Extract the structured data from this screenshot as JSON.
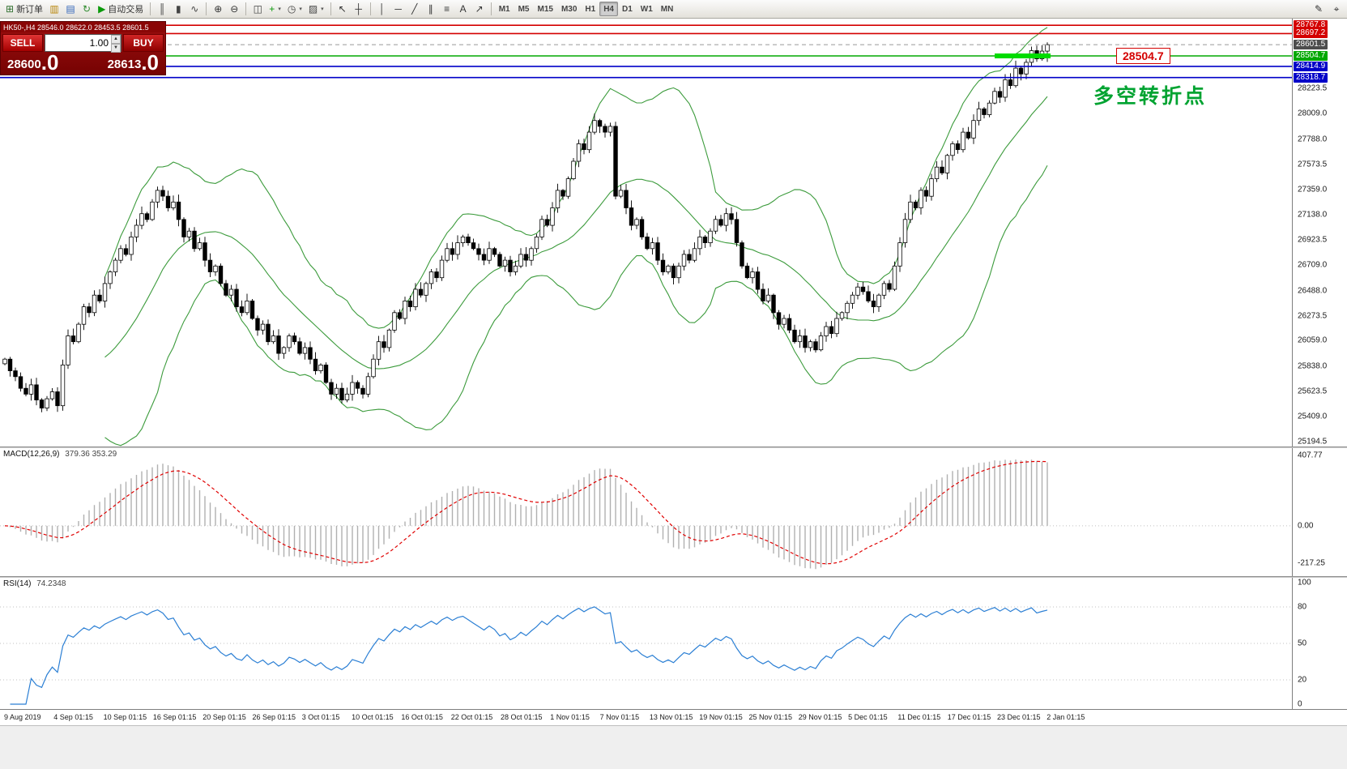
{
  "toolbar": {
    "items": [
      {
        "name": "new-order-button",
        "icon": "new-order-icon",
        "glyph": "⊞",
        "color": "#2e6e2e",
        "label": "新订单"
      },
      {
        "name": "charts-button",
        "icon": "charts-icon",
        "glyph": "▥",
        "color": "#b8860b"
      },
      {
        "name": "profiles-button",
        "icon": "profiles-icon",
        "glyph": "▤",
        "color": "#3366bb"
      },
      {
        "name": "refresh-button",
        "icon": "refresh-icon",
        "glyph": "↻",
        "color": "#2e8b2e"
      },
      {
        "name": "autotrade-button",
        "icon": "autotrade-icon",
        "glyph": "▶",
        "color": "#0a9a0a",
        "label": "自动交易"
      },
      {
        "type": "sep"
      },
      {
        "name": "bar-chart-button",
        "icon": "bar-chart-icon",
        "glyph": "║",
        "color": "#444"
      },
      {
        "name": "candlestick-chart-button",
        "icon": "candlestick-chart-icon",
        "glyph": "▮",
        "color": "#444"
      },
      {
        "name": "line-chart-button",
        "icon": "line-chart-icon",
        "glyph": "∿",
        "color": "#444"
      },
      {
        "type": "sep"
      },
      {
        "name": "zoom-in-button",
        "icon": "zoom-in-icon",
        "glyph": "⊕",
        "color": "#333"
      },
      {
        "name": "zoom-out-button",
        "icon": "zoom-out-icon",
        "glyph": "⊖",
        "color": "#333"
      },
      {
        "type": "sep"
      },
      {
        "name": "tile-windows-button",
        "icon": "tile-windows-icon",
        "glyph": "◫",
        "color": "#444"
      },
      {
        "name": "indicators-button",
        "icon": "indicators-icon",
        "glyph": "+",
        "color": "#0a9a0a",
        "dropdown": true
      },
      {
        "name": "periods-button",
        "icon": "periods-icon",
        "glyph": "◷",
        "color": "#444",
        "dropdown": true
      },
      {
        "name": "templates-button",
        "icon": "templates-icon",
        "glyph": "▨",
        "color": "#444",
        "dropdown": true
      },
      {
        "type": "sep"
      },
      {
        "name": "cursor-button",
        "icon": "cursor-icon",
        "glyph": "↖",
        "color": "#333"
      },
      {
        "name": "crosshair-button",
        "icon": "crosshair-icon",
        "glyph": "┼",
        "color": "#333"
      },
      {
        "type": "sep"
      },
      {
        "name": "vertical-line-button",
        "icon": "vertical-line-icon",
        "glyph": "│",
        "color": "#333"
      },
      {
        "name": "horizontal-line-button",
        "icon": "horizontal-line-icon",
        "glyph": "─",
        "color": "#333"
      },
      {
        "name": "trendline-button",
        "icon": "trendline-icon",
        "glyph": "╱",
        "color": "#333"
      },
      {
        "name": "channel-button",
        "icon": "channel-icon",
        "glyph": "∥",
        "color": "#333"
      },
      {
        "name": "fibonacci-button",
        "icon": "fibonacci-icon",
        "glyph": "≡",
        "color": "#333"
      },
      {
        "name": "text-button",
        "icon": "text-icon",
        "glyph": "A",
        "color": "#333"
      },
      {
        "name": "arrows-button",
        "icon": "arrows-icon",
        "glyph": "↗",
        "color": "#333"
      },
      {
        "type": "sep"
      }
    ],
    "timeframes": [
      "M1",
      "M5",
      "M15",
      "M30",
      "H1",
      "H4",
      "D1",
      "W1",
      "MN"
    ],
    "active_timeframe": "H4",
    "right_icons": [
      {
        "name": "quick-edit-button",
        "icon": "pencil-icon",
        "glyph": "✎"
      },
      {
        "name": "crosshair-tool-button",
        "icon": "target-icon",
        "glyph": "⌖"
      }
    ]
  },
  "trade_panel": {
    "symbol_period": "HK50-,H4",
    "ohlc_text": "28546.0 28622.0 28453.5 28601.5",
    "sell_label": "SELL",
    "buy_label": "BUY",
    "volume": "1.00",
    "bid_main": "28600",
    "bid_big": ".0",
    "ask_main": "28613",
    "ask_big": ".0"
  },
  "annotations": {
    "price_label": "28504.7",
    "note_text": "多空转折点",
    "note_color": "#00a331"
  },
  "chart_data": {
    "type": "candlestick",
    "symbol": "HK50-",
    "period": "H4",
    "style": {
      "candle_up": "#ffffff",
      "candle_down": "#000000",
      "candle_outline": "#000000"
    },
    "y_axis": {
      "price_top": 28825,
      "price_bottom": 25150,
      "line_labels": [
        {
          "text": "28767.8",
          "value": 28767.8,
          "bg": "#d40000"
        },
        {
          "text": "28697.2",
          "value": 28697.2,
          "bg": "#d40000"
        },
        {
          "text": "28601.5",
          "value": 28601.5,
          "bg": "#4d4d4d"
        },
        {
          "text": "28504.7",
          "value": 28504.7,
          "bg": "#00a800"
        },
        {
          "text": "28414.9",
          "value": 28414.9,
          "bg": "#0000c8"
        },
        {
          "text": "28318.7",
          "value": 28318.7,
          "bg": "#0000c8"
        }
      ],
      "ticks": [
        {
          "text": "28223.5",
          "value": 28223.5
        },
        {
          "text": "28009.0",
          "value": 28009.0
        },
        {
          "text": "27788.0",
          "value": 27788.0
        },
        {
          "text": "27573.5",
          "value": 27573.5
        },
        {
          "text": "27359.0",
          "value": 27359.0
        },
        {
          "text": "27138.0",
          "value": 27138.0
        },
        {
          "text": "26923.5",
          "value": 26923.5
        },
        {
          "text": "26709.0",
          "value": 26709.0
        },
        {
          "text": "26488.0",
          "value": 26488.0
        },
        {
          "text": "26273.5",
          "value": 26273.5
        },
        {
          "text": "26059.0",
          "value": 26059.0
        },
        {
          "text": "25838.0",
          "value": 25838.0
        },
        {
          "text": "25623.5",
          "value": 25623.5
        },
        {
          "text": "25409.0",
          "value": 25409.0
        },
        {
          "text": "25194.5",
          "value": 25194.5
        }
      ]
    },
    "x_axis_labels": [
      "9 Aug 2019",
      "4 Sep 01:15",
      "10 Sep 01:15",
      "16 Sep 01:15",
      "20 Sep 01:15",
      "26 Sep 01:15",
      "3 Oct 01:15",
      "10 Oct 01:15",
      "16 Oct 01:15",
      "22 Oct 01:15",
      "28 Oct 01:15",
      "1 Nov 01:15",
      "7 Nov 01:15",
      "13 Nov 01:15",
      "19 Nov 01:15",
      "25 Nov 01:15",
      "29 Nov 01:15",
      "5 Dec 01:15",
      "11 Dec 01:15",
      "17 Dec 01:15",
      "23 Dec 01:15",
      "2 Jan 01:15"
    ],
    "series": {
      "closes": [
        25900,
        25800,
        25750,
        25650,
        25600,
        25680,
        25550,
        25480,
        25560,
        25620,
        25500,
        25850,
        26100,
        26050,
        26200,
        26350,
        26300,
        26450,
        26400,
        26550,
        26650,
        26750,
        26850,
        26800,
        26950,
        27050,
        27150,
        27100,
        27250,
        27350,
        27300,
        27200,
        27250,
        27100,
        26950,
        27000,
        26850,
        26900,
        26750,
        26650,
        26700,
        26550,
        26450,
        26500,
        26350,
        26300,
        26400,
        26250,
        26150,
        26200,
        26050,
        26100,
        25950,
        26000,
        26100,
        26050,
        25950,
        26000,
        25900,
        25800,
        25850,
        25700,
        25600,
        25650,
        25550,
        25600,
        25700,
        25650,
        25600,
        25750,
        25900,
        26050,
        26000,
        26150,
        26300,
        26250,
        26400,
        26350,
        26500,
        26450,
        26550,
        26650,
        26600,
        26750,
        26850,
        26800,
        26900,
        26950,
        26900,
        26850,
        26800,
        26750,
        26850,
        26800,
        26700,
        26750,
        26650,
        26700,
        26800,
        26750,
        26850,
        26950,
        27100,
        27050,
        27200,
        27350,
        27300,
        27450,
        27600,
        27750,
        27700,
        27850,
        27950,
        27900,
        27850,
        27900,
        27300,
        27350,
        27200,
        27050,
        27100,
        26950,
        26850,
        26900,
        26750,
        26650,
        26700,
        26600,
        26700,
        26800,
        26750,
        26850,
        26950,
        26900,
        27000,
        27100,
        27050,
        27150,
        27100,
        26900,
        26700,
        26600,
        26650,
        26500,
        26400,
        26450,
        26300,
        26200,
        26250,
        26150,
        26050,
        26100,
        26000,
        26050,
        25980,
        26100,
        26180,
        26120,
        26250,
        26300,
        26380,
        26450,
        26520,
        26480,
        26400,
        26350,
        26450,
        26550,
        26500,
        26700,
        26900,
        27100,
        27250,
        27200,
        27350,
        27300,
        27450,
        27550,
        27500,
        27650,
        27750,
        27700,
        27850,
        27800,
        27950,
        28050,
        28000,
        28100,
        28200,
        28150,
        28300,
        28250,
        28400,
        28350,
        28450,
        28550,
        28480,
        28546,
        28601.5
      ],
      "last_candle": {
        "o": 28546.0,
        "h": 28622.0,
        "l": 28453.5,
        "c": 28601.5
      }
    },
    "hlines": [
      {
        "price": 28767.8,
        "color": "#d40000",
        "width": 1.6
      },
      {
        "price": 28697.2,
        "color": "#d40000",
        "width": 1.6
      },
      {
        "price": 28601.5,
        "color": "#999999",
        "width": 1,
        "dash": "5 4"
      },
      {
        "price": 28504.7,
        "color": "#00a800",
        "width": 1.6
      },
      {
        "price": 28414.9,
        "color": "#0000c8",
        "width": 1.6
      },
      {
        "price": 28318.7,
        "color": "#0000c8",
        "width": 1.6
      }
    ],
    "highlight_segment": {
      "price": 28504.7,
      "bar_from": 188,
      "bar_to": 198,
      "color": "#00dc00",
      "thickness": 6
    },
    "indicators": {
      "bollinger": {
        "period": 20,
        "deviation": 2,
        "color": "#3c9b3c"
      },
      "macd": {
        "label": "MACD(12,26,9)",
        "values_text": "379.36 353.29",
        "fast": 12,
        "slow": 26,
        "signal": 9,
        "histogram_color": "#b0b0b0",
        "signal_color": "#e00000",
        "axis_ticks": [
          {
            "text": "407.77",
            "value": 407.77
          },
          {
            "text": "0.00",
            "value": 0
          },
          {
            "text": "-217.25",
            "value": -217.25
          }
        ]
      },
      "rsi": {
        "label": "RSI(14)",
        "value_text": "74.2348",
        "period": 14,
        "line_color": "#2b7fd4",
        "levels": [
          80,
          50,
          20
        ],
        "axis_ticks": [
          {
            "text": "100",
            "value": 100
          },
          {
            "text": "80",
            "value": 80
          },
          {
            "text": "50",
            "value": 50
          },
          {
            "text": "20",
            "value": 20
          },
          {
            "text": "0",
            "value": 0
          }
        ]
      }
    }
  }
}
